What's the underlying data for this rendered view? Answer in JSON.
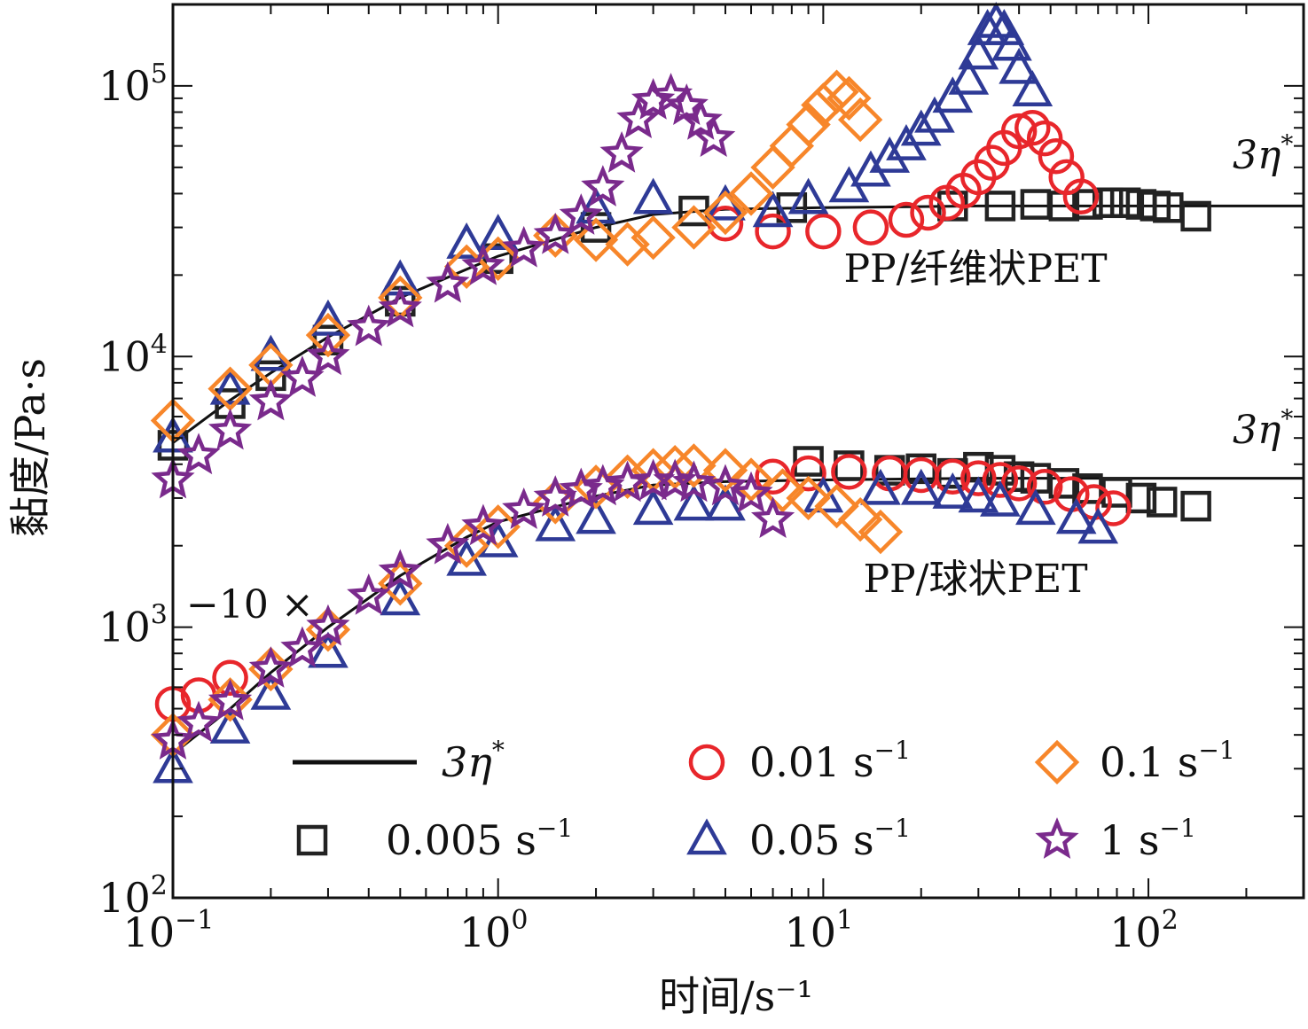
{
  "chart_data": {
    "type": "scatter",
    "x_scale": "log",
    "y_scale": "log",
    "xlim": [
      0.1,
      300
    ],
    "ylim": [
      100,
      200000
    ],
    "xlabel": "时间/s⁻¹",
    "ylabel": "黏度/Pa·s",
    "x_ticks": [
      {
        "base": "10",
        "exp": "−1"
      },
      {
        "base": "10",
        "exp": "0"
      },
      {
        "base": "10",
        "exp": "1"
      },
      {
        "base": "10",
        "exp": "2"
      }
    ],
    "y_ticks": [
      {
        "base": "10",
        "exp": "2"
      },
      {
        "base": "10",
        "exp": "3"
      },
      {
        "base": "10",
        "exp": "4"
      },
      {
        "base": "10",
        "exp": "5"
      }
    ],
    "annotations": {
      "fiber_label": "PP/纤维状PET",
      "sphere_label": "PP/球状PET",
      "scale_note": "−10 ×",
      "line_label_base": "3η",
      "line_label_sup": "*"
    },
    "legend": {
      "placement": "bottom",
      "entries": [
        {
          "key": "line",
          "base": "3η",
          "sup": "*"
        },
        {
          "key": "circle",
          "base": "0.01 s",
          "sup": "−1"
        },
        {
          "key": "diamond",
          "base": "0.1 s",
          "sup": "−1"
        },
        {
          "key": "square",
          "base": "0.005 s",
          "sup": "−1"
        },
        {
          "key": "triangle",
          "base": "0.05 s",
          "sup": "−1"
        },
        {
          "key": "star",
          "base": "1 s",
          "sup": "−1"
        }
      ]
    },
    "colors": {
      "square": "#222222",
      "circle": "#e8262b",
      "triangle": "#2e3a96",
      "diamond": "#f7862a",
      "star": "#7a2a8c",
      "line": "#111111"
    },
    "series": [
      {
        "key": "line",
        "group": "fiber",
        "points": [
          [
            0.1,
            4800
          ],
          [
            0.15,
            6900
          ],
          [
            0.2,
            8700
          ],
          [
            0.3,
            11800
          ],
          [
            0.5,
            16500
          ],
          [
            0.8,
            21000
          ],
          [
            1,
            23500
          ],
          [
            2,
            30000
          ],
          [
            3,
            33500
          ],
          [
            5,
            35000
          ],
          [
            10,
            35500
          ],
          [
            30,
            36000
          ],
          [
            100,
            36000
          ],
          [
            300,
            36000
          ]
        ]
      },
      {
        "key": "line",
        "group": "sphere",
        "points": [
          [
            0.1,
            340
          ],
          [
            0.15,
            500
          ],
          [
            0.2,
            680
          ],
          [
            0.3,
            1000
          ],
          [
            0.5,
            1550
          ],
          [
            0.8,
            2150
          ],
          [
            1,
            2450
          ],
          [
            2,
            3050
          ],
          [
            3,
            3350
          ],
          [
            5,
            3450
          ],
          [
            10,
            3500
          ],
          [
            30,
            3550
          ],
          [
            100,
            3550
          ],
          [
            300,
            3550
          ]
        ]
      },
      {
        "key": "square",
        "group": "fiber",
        "points": [
          [
            0.1,
            4700
          ],
          [
            0.15,
            6700
          ],
          [
            0.2,
            8500
          ],
          [
            0.3,
            11500
          ],
          [
            0.5,
            16000
          ],
          [
            1,
            23000
          ],
          [
            2,
            30000
          ],
          [
            4,
            34500
          ],
          [
            8,
            35500
          ],
          [
            25,
            36000
          ],
          [
            35,
            36000
          ],
          [
            45,
            36500
          ],
          [
            55,
            36000
          ],
          [
            65,
            36500
          ],
          [
            75,
            37000
          ],
          [
            85,
            37000
          ],
          [
            95,
            36500
          ],
          [
            105,
            36000
          ],
          [
            115,
            35500
          ],
          [
            140,
            33000
          ]
        ]
      },
      {
        "key": "circle",
        "group": "fiber",
        "points": [
          [
            5,
            31000
          ],
          [
            7,
            29000
          ],
          [
            10,
            29000
          ],
          [
            14,
            30000
          ],
          [
            18,
            32000
          ],
          [
            21,
            34000
          ],
          [
            24,
            37000
          ],
          [
            27,
            41000
          ],
          [
            30,
            46000
          ],
          [
            33,
            52000
          ],
          [
            36,
            59000
          ],
          [
            40,
            68000
          ],
          [
            44,
            70000
          ],
          [
            48,
            64000
          ],
          [
            52,
            55000
          ],
          [
            56,
            46000
          ],
          [
            62,
            39000
          ]
        ]
      },
      {
        "key": "triangle",
        "group": "fiber",
        "points": [
          [
            0.1,
            5000
          ],
          [
            0.15,
            7500
          ],
          [
            0.2,
            10000
          ],
          [
            0.3,
            13500
          ],
          [
            0.5,
            19000
          ],
          [
            0.8,
            26000
          ],
          [
            1,
            28000
          ],
          [
            2,
            35000
          ],
          [
            3,
            38000
          ],
          [
            5,
            36000
          ],
          [
            7,
            34000
          ],
          [
            9,
            38000
          ],
          [
            12,
            42000
          ],
          [
            14,
            48000
          ],
          [
            16,
            54000
          ],
          [
            18,
            60000
          ],
          [
            20,
            68000
          ],
          [
            22,
            76000
          ],
          [
            25,
            90000
          ],
          [
            28,
            105000
          ],
          [
            30,
            130000
          ],
          [
            32,
            160000
          ],
          [
            34,
            170000
          ],
          [
            36,
            160000
          ],
          [
            38,
            140000
          ],
          [
            40,
            115000
          ],
          [
            44,
            95000
          ]
        ]
      },
      {
        "key": "diamond",
        "group": "fiber",
        "points": [
          [
            0.1,
            5800
          ],
          [
            0.15,
            7600
          ],
          [
            0.2,
            9300
          ],
          [
            0.3,
            12000
          ],
          [
            0.5,
            16500
          ],
          [
            0.8,
            21500
          ],
          [
            1,
            23000
          ],
          [
            1.5,
            28000
          ],
          [
            2,
            27000
          ],
          [
            2.5,
            26000
          ],
          [
            3,
            27500
          ],
          [
            4,
            30000
          ],
          [
            5,
            34000
          ],
          [
            6,
            40000
          ],
          [
            7,
            50000
          ],
          [
            8,
            60000
          ],
          [
            9,
            72000
          ],
          [
            10,
            85000
          ],
          [
            11,
            95000
          ],
          [
            12,
            90000
          ],
          [
            13,
            75000
          ]
        ]
      },
      {
        "key": "star",
        "group": "fiber",
        "points": [
          [
            0.1,
            3500
          ],
          [
            0.12,
            4300
          ],
          [
            0.15,
            5300
          ],
          [
            0.2,
            6800
          ],
          [
            0.25,
            8300
          ],
          [
            0.3,
            10000
          ],
          [
            0.4,
            12800
          ],
          [
            0.5,
            15000
          ],
          [
            0.7,
            18500
          ],
          [
            0.9,
            21500
          ],
          [
            1.2,
            25000
          ],
          [
            1.5,
            28000
          ],
          [
            1.8,
            33000
          ],
          [
            2.1,
            42000
          ],
          [
            2.4,
            56000
          ],
          [
            2.7,
            75000
          ],
          [
            3.0,
            88000
          ],
          [
            3.4,
            92000
          ],
          [
            3.8,
            84000
          ],
          [
            4.2,
            74000
          ],
          [
            4.6,
            64000
          ]
        ]
      },
      {
        "key": "square",
        "group": "sphere",
        "points": [
          [
            9,
            4100
          ],
          [
            12,
            3950
          ],
          [
            16,
            3800
          ],
          [
            20,
            3850
          ],
          [
            25,
            3700
          ],
          [
            30,
            3900
          ],
          [
            35,
            3800
          ],
          [
            40,
            3600
          ],
          [
            45,
            3550
          ],
          [
            55,
            3400
          ],
          [
            65,
            3250
          ],
          [
            80,
            3150
          ],
          [
            95,
            3000
          ],
          [
            110,
            2900
          ],
          [
            140,
            2800
          ]
        ]
      },
      {
        "key": "circle",
        "group": "sphere",
        "points": [
          [
            0.1,
            520
          ],
          [
            0.12,
            560
          ],
          [
            0.15,
            650
          ],
          [
            7,
            3600
          ],
          [
            9,
            3700
          ],
          [
            12,
            3750
          ],
          [
            16,
            3700
          ],
          [
            20,
            3650
          ],
          [
            25,
            3600
          ],
          [
            30,
            3550
          ],
          [
            35,
            3500
          ],
          [
            40,
            3400
          ],
          [
            48,
            3300
          ],
          [
            58,
            3100
          ],
          [
            68,
            2900
          ],
          [
            78,
            2750
          ]
        ]
      },
      {
        "key": "triangle",
        "group": "sphere",
        "points": [
          [
            0.1,
            300
          ],
          [
            0.15,
            420
          ],
          [
            0.2,
            560
          ],
          [
            0.3,
            800
          ],
          [
            0.5,
            1250
          ],
          [
            0.8,
            1750
          ],
          [
            1,
            2050
          ],
          [
            1.5,
            2350
          ],
          [
            2,
            2500
          ],
          [
            3,
            2700
          ],
          [
            4,
            2800
          ],
          [
            5,
            2800
          ],
          [
            10,
            3000
          ],
          [
            15,
            3200
          ],
          [
            20,
            3200
          ],
          [
            25,
            3100
          ],
          [
            30,
            3000
          ],
          [
            35,
            2900
          ],
          [
            45,
            2700
          ],
          [
            60,
            2500
          ],
          [
            70,
            2300
          ]
        ]
      },
      {
        "key": "diamond",
        "group": "sphere",
        "points": [
          [
            0.1,
            400
          ],
          [
            0.15,
            540
          ],
          [
            0.2,
            700
          ],
          [
            0.3,
            980
          ],
          [
            0.5,
            1450
          ],
          [
            0.8,
            2000
          ],
          [
            1,
            2350
          ],
          [
            1.5,
            2900
          ],
          [
            2,
            3300
          ],
          [
            2.5,
            3600
          ],
          [
            3,
            3800
          ],
          [
            3.5,
            3900
          ],
          [
            4,
            3950
          ],
          [
            5,
            3800
          ],
          [
            6,
            3500
          ],
          [
            7.5,
            3200
          ],
          [
            9,
            3000
          ],
          [
            11,
            2800
          ],
          [
            13,
            2500
          ],
          [
            15,
            2250
          ]
        ]
      },
      {
        "key": "star",
        "group": "sphere",
        "points": [
          [
            0.1,
            380
          ],
          [
            0.12,
            440
          ],
          [
            0.15,
            530
          ],
          [
            0.2,
            700
          ],
          [
            0.25,
            830
          ],
          [
            0.3,
            1000
          ],
          [
            0.4,
            1300
          ],
          [
            0.5,
            1600
          ],
          [
            0.7,
            2000
          ],
          [
            0.9,
            2350
          ],
          [
            1.2,
            2700
          ],
          [
            1.5,
            3000
          ],
          [
            1.8,
            3200
          ],
          [
            2.1,
            3300
          ],
          [
            2.5,
            3400
          ],
          [
            3,
            3450
          ],
          [
            3.5,
            3450
          ],
          [
            4,
            3400
          ],
          [
            5,
            3300
          ],
          [
            6,
            3100
          ],
          [
            7,
            2500
          ]
        ]
      }
    ]
  }
}
